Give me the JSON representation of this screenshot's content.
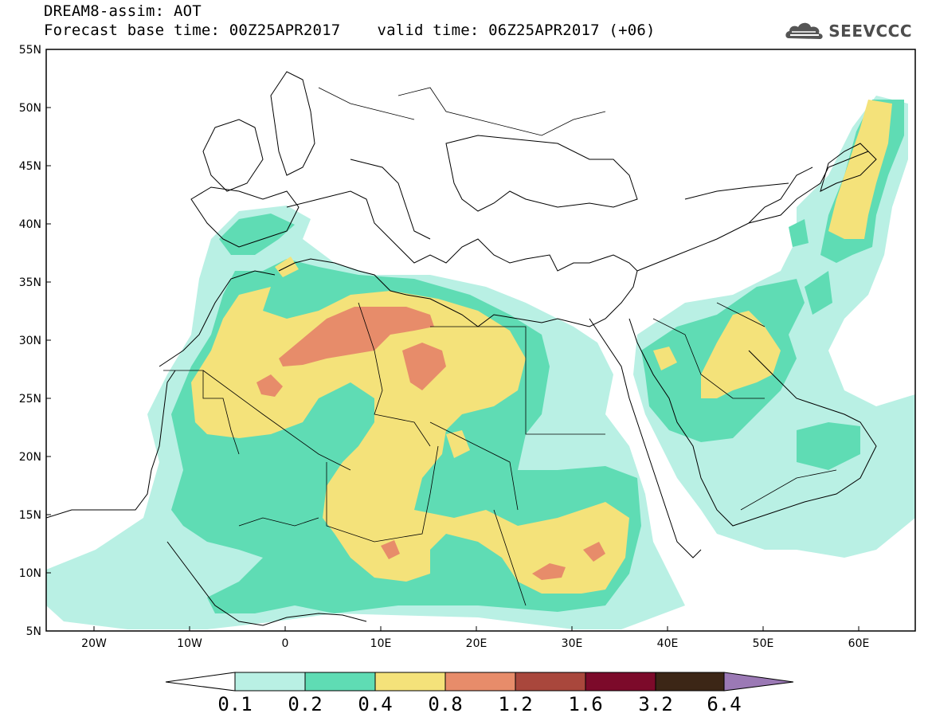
{
  "header": {
    "title_line1": "DREAM8-assim: AOT",
    "base_time": "Forecast base time: 00Z25APR2017",
    "valid_time": "valid time: 06Z25APR2017 (+06)",
    "logo_text": "SEEVCCC"
  },
  "map": {
    "lon_labels": [
      "20W",
      "10W",
      "0",
      "10E",
      "20E",
      "30E",
      "40E",
      "50E",
      "60E"
    ],
    "lat_labels": [
      "55N",
      "50N",
      "45N",
      "40N",
      "35N",
      "30N",
      "25N",
      "20N",
      "15N",
      "10N",
      "5N"
    ]
  },
  "colorbar": {
    "labels": [
      "0.1",
      "0.2",
      "0.4",
      "0.8",
      "1.2",
      "1.6",
      "3.2",
      "6.4"
    ],
    "colors": [
      "#b9f0e4",
      "#5fdcb4",
      "#f4e27a",
      "#e78c6a",
      "#a9473c",
      "#7c0a2a",
      "#3c2616",
      "#9b79b5"
    ]
  },
  "chart_data": {
    "type": "heatmap",
    "variable": "AOT",
    "xlim": [
      -25,
      65
    ],
    "ylim": [
      5,
      55
    ],
    "levels": [
      0.1,
      0.2,
      0.4,
      0.8,
      1.2,
      1.6,
      3.2,
      6.4
    ]
  }
}
